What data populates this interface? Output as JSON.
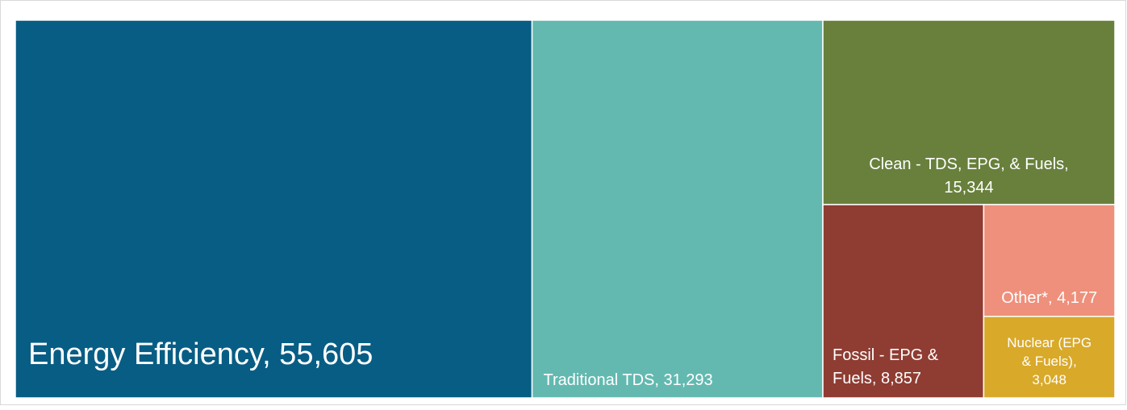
{
  "chart_data": {
    "type": "treemap",
    "title": "",
    "items": [
      {
        "label": "Energy Efficiency",
        "value": 55605,
        "display": "Energy Efficiency, 55,605",
        "color": "#085d84",
        "text_color": "#ffffff"
      },
      {
        "label": "Traditional TDS",
        "value": 31293,
        "display": "Traditional TDS, 31,293",
        "color": "#63b9b0",
        "text_color": "#ffffff"
      },
      {
        "label": "Clean - TDS, EPG, & Fuels",
        "value": 15344,
        "display": "Clean - TDS, EPG, & Fuels, 15,344",
        "color": "#68803c",
        "text_color": "#ffffff"
      },
      {
        "label": "Fossil - EPG & Fuels",
        "value": 8857,
        "display": "Fossil - EPG & Fuels, 8,857",
        "color": "#8f3c32",
        "text_color": "#ffffff"
      },
      {
        "label": "Other*",
        "value": 4177,
        "display": "Other*, 4,177",
        "color": "#ee907b",
        "text_color": "#ffffff"
      },
      {
        "label": "Nuclear (EPG & Fuels)",
        "value": 3048,
        "display": "Nuclear (EPG & Fuels), 3,048",
        "color": "#d9a92a",
        "text_color": "#ffffff"
      }
    ]
  }
}
